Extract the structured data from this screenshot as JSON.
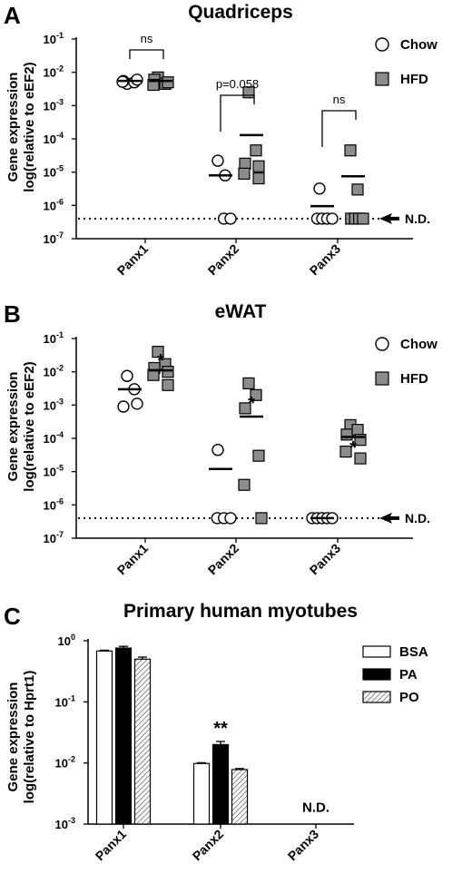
{
  "chart_data": [
    {
      "panel": "A",
      "type": "scatter",
      "title": "Quadriceps",
      "ylabel": [
        "Gene expression",
        "log(relative to eEF2)"
      ],
      "yscale": "log",
      "ylim": [
        1e-07,
        0.1
      ],
      "yticks": [
        {
          "base": "10",
          "exp": "-1",
          "value": 0.1
        },
        {
          "base": "10",
          "exp": "-2",
          "value": 0.01
        },
        {
          "base": "10",
          "exp": "-3",
          "value": 0.001
        },
        {
          "base": "10",
          "exp": "-4",
          "value": 0.0001
        },
        {
          "base": "10",
          "exp": "-5",
          "value": 1e-05
        },
        {
          "base": "10",
          "exp": "-6",
          "value": 1e-06
        },
        {
          "base": "10",
          "exp": "-7",
          "value": 1e-07
        }
      ],
      "categories": [
        "Panx1",
        "Panx2",
        "Panx3"
      ],
      "legend": {
        "position": "top-right",
        "items": [
          {
            "label": "Chow",
            "marker": "circle"
          },
          {
            "label": "HFD",
            "marker": "square"
          }
        ]
      },
      "nd_label": "N.D.",
      "nd_value": 4e-07,
      "series": [
        {
          "name": "Chow",
          "marker": "circle",
          "groups": [
            {
              "category": "Panx1",
              "mean": 0.0055,
              "points": [
                0.0045,
                0.005,
                0.0055,
                0.006,
                0.0052
              ]
            },
            {
              "category": "Panx2",
              "mean": 8e-06,
              "points": [
                2.2e-05,
                8e-06,
                4e-07,
                4e-07
              ]
            },
            {
              "category": "Panx3",
              "mean": 9.5e-07,
              "points": [
                3.2e-06,
                4e-07,
                4e-07,
                4e-07,
                4e-07
              ]
            }
          ]
        },
        {
          "name": "HFD",
          "marker": "square",
          "groups": [
            {
              "category": "Panx1",
              "mean": 0.0055,
              "points": [
                0.007,
                0.0045,
                0.006,
                0.005,
                0.0042
              ]
            },
            {
              "category": "Panx2",
              "mean": 0.00013,
              "points": [
                0.0025,
                4.5e-05,
                1.8e-05,
                1.5e-05,
                9e-06,
                6.5e-06
              ]
            },
            {
              "category": "Panx3",
              "mean": 7.5e-06,
              "points": [
                4.5e-05,
                3e-06,
                4e-07,
                4e-07,
                4e-07,
                4e-07
              ]
            }
          ]
        }
      ],
      "comparisons": [
        {
          "category": "Panx1",
          "label": "ns"
        },
        {
          "category": "Panx2",
          "label": "p=0.058"
        },
        {
          "category": "Panx3",
          "label": "ns"
        }
      ]
    },
    {
      "panel": "B",
      "type": "scatter",
      "title": "eWAT",
      "ylabel": [
        "Gene expression",
        "log(relative to eEF2)"
      ],
      "yscale": "log",
      "ylim": [
        1e-07,
        0.1
      ],
      "yticks": [
        {
          "base": "10",
          "exp": "-1",
          "value": 0.1
        },
        {
          "base": "10",
          "exp": "-2",
          "value": 0.01
        },
        {
          "base": "10",
          "exp": "-3",
          "value": 0.001
        },
        {
          "base": "10",
          "exp": "-4",
          "value": 0.0001
        },
        {
          "base": "10",
          "exp": "-5",
          "value": 1e-05
        },
        {
          "base": "10",
          "exp": "-6",
          "value": 1e-06
        },
        {
          "base": "10",
          "exp": "-7",
          "value": 1e-07
        }
      ],
      "categories": [
        "Panx1",
        "Panx2",
        "Panx3"
      ],
      "legend": {
        "position": "top-right",
        "items": [
          {
            "label": "Chow",
            "marker": "circle"
          },
          {
            "label": "HFD",
            "marker": "square"
          }
        ]
      },
      "nd_label": "N.D.",
      "nd_value": 4e-07,
      "series": [
        {
          "name": "Chow",
          "marker": "circle",
          "groups": [
            {
              "category": "Panx1",
              "mean": 0.003,
              "points": [
                0.0075,
                0.003,
                0.0009,
                0.0011
              ]
            },
            {
              "category": "Panx2",
              "mean": 1.2e-05,
              "points": [
                4.5e-05,
                4e-07,
                4e-07,
                4e-07
              ]
            },
            {
              "category": "Panx3",
              "mean": 4e-07,
              "points": [
                4e-07,
                4e-07,
                4e-07,
                4e-07,
                4e-07
              ]
            }
          ]
        },
        {
          "name": "HFD",
          "marker": "square",
          "groups": [
            {
              "category": "Panx1",
              "mean": 0.011,
              "points": [
                0.04,
                0.017,
                0.013,
                0.01,
                0.008,
                0.004
              ]
            },
            {
              "category": "Panx2",
              "mean": 0.00045,
              "points": [
                0.0045,
                0.002,
                0.0008,
                3e-05,
                4e-06,
                4e-07
              ]
            },
            {
              "category": "Panx3",
              "mean": 0.00011,
              "points": [
                0.00025,
                0.00018,
                0.00013,
                9e-05,
                4e-05,
                2.5e-05
              ]
            }
          ]
        }
      ],
      "annotations": [
        {
          "category": "Panx1",
          "label": "*"
        },
        {
          "category": "Panx2",
          "label": "*"
        },
        {
          "category": "Panx3",
          "label": "*"
        }
      ]
    },
    {
      "panel": "C",
      "type": "bar",
      "title": "Primary human myotubes",
      "ylabel": [
        "Gene expression",
        "log(relative to Hprt1)"
      ],
      "yscale": "log",
      "ylim": [
        0.001,
        1
      ],
      "yticks": [
        {
          "base": "10",
          "exp": "0",
          "value": 1
        },
        {
          "base": "10",
          "exp": "-1",
          "value": 0.1
        },
        {
          "base": "10",
          "exp": "-2",
          "value": 0.01
        },
        {
          "base": "10",
          "exp": "-3",
          "value": 0.001
        }
      ],
      "categories": [
        "Panx1",
        "Panx2",
        "Panx3"
      ],
      "legend": {
        "position": "top-right",
        "items": [
          {
            "label": "BSA",
            "fill": "white"
          },
          {
            "label": "PA",
            "fill": "black"
          },
          {
            "label": "PO",
            "fill": "hatched"
          }
        ]
      },
      "series": [
        {
          "name": "BSA",
          "values": [
            0.68,
            0.0098,
            null
          ],
          "errors": [
            0.02,
            0.0003,
            null
          ]
        },
        {
          "name": "PA",
          "values": [
            0.76,
            0.02,
            null
          ],
          "errors": [
            0.05,
            0.0025,
            null
          ]
        },
        {
          "name": "PO",
          "values": [
            0.5,
            0.0078,
            null
          ],
          "errors": [
            0.04,
            0.0003,
            null
          ]
        }
      ],
      "annotations": [
        {
          "category": "Panx2",
          "series": "PA",
          "label": "**"
        },
        {
          "category": "Panx3",
          "label": "N.D."
        }
      ]
    }
  ]
}
